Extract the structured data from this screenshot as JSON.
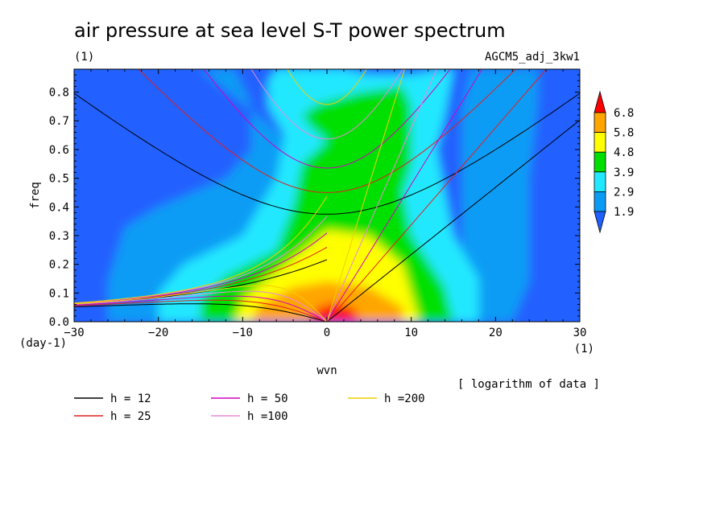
{
  "chart_data": {
    "type": "heatmap",
    "title": "air pressure at sea level S-T power spectrum",
    "subtitle_left": "(1)",
    "subtitle_right": "AGCM5_adj_3kw1",
    "xlabel": "wvn",
    "ylabel": "freq",
    "x_unit": "(1)",
    "y_unit": "(day-1)",
    "xlim": [
      -30,
      30
    ],
    "ylim": [
      0,
      0.88
    ],
    "x_ticks": [
      -30,
      -20,
      -10,
      0,
      10,
      20,
      30
    ],
    "y_ticks": [
      0.0,
      0.1,
      0.2,
      0.3,
      0.4,
      0.5,
      0.6,
      0.7,
      0.8
    ],
    "note": "[ logarithm of data ]",
    "colorbar": {
      "levels": [
        1.9,
        2.9,
        3.9,
        4.8,
        5.8,
        6.8
      ],
      "colors": [
        "#2060ff",
        "#0a9cf5",
        "#22e8ff",
        "#00e000",
        "#ffff00",
        "#ffa500",
        "#ff0000"
      ]
    },
    "dispersion_curves": [
      {
        "label": "h = 12",
        "h": 12,
        "color": "#000000"
      },
      {
        "label": "h = 25",
        "h": 25,
        "color": "#e0201e"
      },
      {
        "label": "h = 50",
        "h": 50,
        "color": "#d000c0"
      },
      {
        "label": "h =100",
        "h": 100,
        "color": "#e88ad8"
      },
      {
        "label": "h =200",
        "h": 200,
        "color": "#f0d000"
      }
    ]
  }
}
